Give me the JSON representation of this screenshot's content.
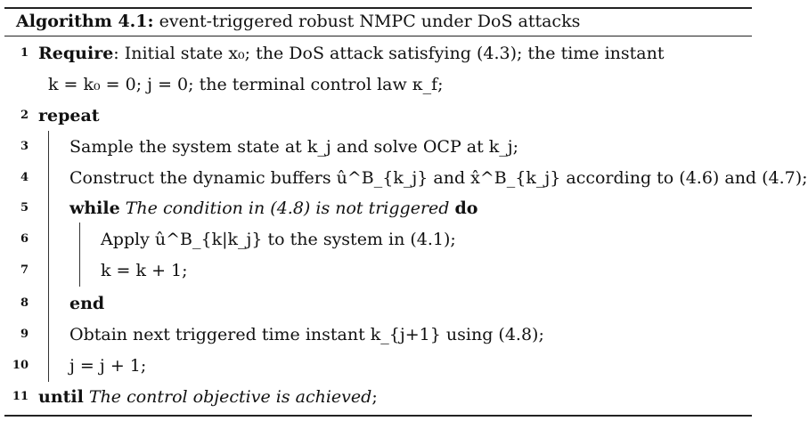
{
  "caption": {
    "label": "Algorithm 4.1:",
    "title": "event-triggered robust NMPC under DoS attacks"
  },
  "lines": [
    {
      "num": "1",
      "kw": "Require",
      "text": ": Initial state x₀; the DoS attack satisfying (4.3); the time instant"
    },
    {
      "num": "",
      "text": "k = k₀ = 0; j = 0; the terminal control law κ_f;"
    },
    {
      "num": "2",
      "kw": "repeat"
    },
    {
      "num": "3",
      "text": "Sample the system state at k_j and solve OCP at k_j;"
    },
    {
      "num": "4",
      "text": "Construct the dynamic buffers û^B_{k_j} and x̂^B_{k_j} according to (4.6) and (4.7);"
    },
    {
      "num": "5",
      "kw": "while",
      "cond": "The condition in (4.8) is not triggered",
      "kw2": "do"
    },
    {
      "num": "6",
      "text": "Apply û^B_{k|k_j} to the system in (4.1);"
    },
    {
      "num": "7",
      "text": "k = k + 1;"
    },
    {
      "num": "8",
      "kw": "end"
    },
    {
      "num": "9",
      "text": "Obtain next triggered time instant k_{j+1} using (4.8);"
    },
    {
      "num": "10",
      "text": "j = j + 1;"
    },
    {
      "num": "11",
      "kw": "until",
      "cond": "The control objective is achieved",
      "tail": ";"
    }
  ]
}
